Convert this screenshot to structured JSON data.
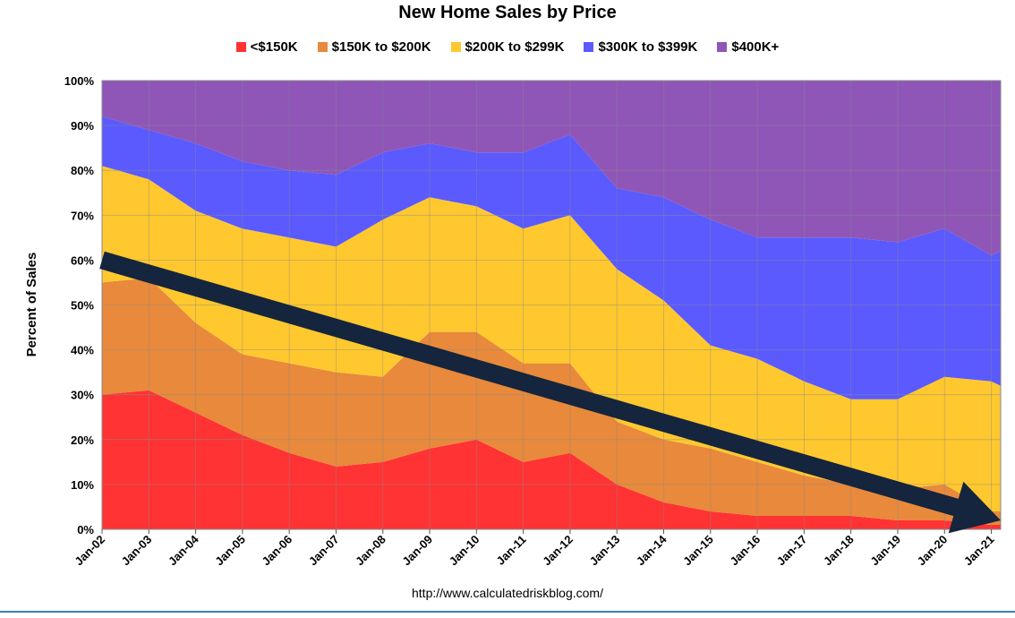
{
  "chart_data": {
    "type": "area",
    "stacked": true,
    "percent": true,
    "title": "New Home Sales by Price",
    "xlabel": "",
    "ylabel": "Percent of Sales",
    "ylim": [
      0,
      100
    ],
    "grid": true,
    "legend_position": "top",
    "source": "http://www.calculatedriskblog.com/",
    "y_ticks": [
      "0%",
      "10%",
      "20%",
      "30%",
      "40%",
      "50%",
      "60%",
      "70%",
      "80%",
      "90%",
      "100%"
    ],
    "categories": [
      "Jan-02",
      "Jan-03",
      "Jan-04",
      "Jan-05",
      "Jan-06",
      "Jan-07",
      "Jan-08",
      "Jan-09",
      "Jan-10",
      "Jan-11",
      "Jan-12",
      "Jan-13",
      "Jan-14",
      "Jan-15",
      "Jan-16",
      "Jan-17",
      "Jan-18",
      "Jan-19",
      "Jan-20",
      "Jan-21"
    ],
    "x": [
      2002,
      2003,
      2004,
      2005,
      2006,
      2007,
      2008,
      2009,
      2010,
      2011,
      2012,
      2013,
      2014,
      2015,
      2016,
      2017,
      2018,
      2019,
      2020,
      2021,
      2021.2
    ],
    "series": [
      {
        "name": "<$150K",
        "color": "#ff3333",
        "values": [
          30,
          31,
          26,
          21,
          17,
          14,
          15,
          18,
          20,
          15,
          17,
          10,
          6,
          4,
          3,
          3,
          3,
          2,
          2,
          1,
          1
        ]
      },
      {
        "name": "$150K to $200K",
        "color": "#e8893b",
        "values": [
          25,
          25,
          20,
          18,
          20,
          21,
          19,
          26,
          24,
          22,
          20,
          14,
          14,
          14,
          12,
          9,
          7,
          7,
          8,
          3,
          3
        ]
      },
      {
        "name": "$200K to $299K",
        "color": "#ffc82e",
        "values": [
          26,
          22,
          25,
          28,
          28,
          28,
          35,
          30,
          28,
          30,
          33,
          34,
          31,
          23,
          23,
          21,
          19,
          20,
          24,
          29,
          28
        ]
      },
      {
        "name": "$300K to $399K",
        "color": "#5a5aff",
        "values": [
          11,
          11,
          15,
          15,
          15,
          16,
          15,
          12,
          12,
          17,
          18,
          18,
          23,
          28,
          27,
          32,
          36,
          35,
          33,
          28,
          30
        ]
      },
      {
        "name": "$400K+",
        "color": "#8f56b8",
        "values": [
          8,
          11,
          14,
          18,
          20,
          21,
          16,
          14,
          16,
          16,
          12,
          24,
          26,
          31,
          35,
          35,
          35,
          36,
          33,
          39,
          38
        ]
      }
    ],
    "annotation": {
      "type": "arrow",
      "direction": "down-right",
      "color": "#14253d",
      "from": {
        "x": 2002,
        "y": 60
      },
      "to": {
        "x": 2021.2,
        "y": 2
      }
    }
  }
}
